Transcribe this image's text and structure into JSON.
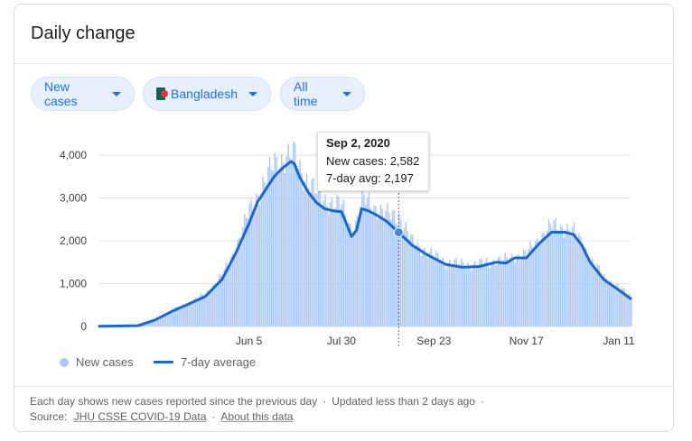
{
  "card": {
    "title": "Daily change"
  },
  "filters": {
    "metric": "New cases",
    "location": "Bangladesh",
    "range": "All time",
    "flag_icon": "bangladesh-flag-icon",
    "colors": {
      "chip_bg": "#e8f0fe",
      "chip_text": "#1a73e8"
    }
  },
  "tooltip": {
    "date": "Sep 2, 2020",
    "cases_text": "New cases: 2,582",
    "avg_text": "7-day avg: 2,197"
  },
  "legend": {
    "cases_label": "New cases",
    "avg_label": "7-day average"
  },
  "footer": {
    "note": "Each day shows new cases reported since the previous day",
    "updated": "Updated less than 2 days ago",
    "source_label": "Source:",
    "source_link": "JHU CSSE COVID-19 Data",
    "about_link": "About this data"
  },
  "chart_data": {
    "type": "bar",
    "ylim": [
      0,
      4000
    ],
    "yticks": [
      0,
      1000,
      2000,
      3000,
      4000
    ],
    "ytick_labels": [
      "0",
      "1,000",
      "2,000",
      "3,000",
      "4,000"
    ],
    "x_start": "2020-03-08",
    "x_end": "2021-01-18",
    "xticks": [
      {
        "date": "2020-06-05",
        "label": "Jun 5"
      },
      {
        "date": "2020-07-30",
        "label": "Jul 30"
      },
      {
        "date": "2020-09-23",
        "label": "Sep 23"
      },
      {
        "date": "2020-11-17",
        "label": "Nov 17"
      },
      {
        "date": "2021-01-11",
        "label": "Jan 11"
      }
    ],
    "highlight": {
      "date": "2020-09-02",
      "value": 2582,
      "avg": 2197
    },
    "colors": {
      "bars": "#a8c7fa",
      "avg_line": "#1967d2",
      "grid": "#e0e0e0"
    },
    "series": [
      {
        "name": "7-day average",
        "points": [
          [
            "2020-03-08",
            5
          ],
          [
            "2020-03-31",
            20
          ],
          [
            "2020-04-10",
            150
          ],
          [
            "2020-04-20",
            350
          ],
          [
            "2020-04-30",
            520
          ],
          [
            "2020-05-10",
            700
          ],
          [
            "2020-05-20",
            1100
          ],
          [
            "2020-05-28",
            1700
          ],
          [
            "2020-06-05",
            2400
          ],
          [
            "2020-06-10",
            2900
          ],
          [
            "2020-06-15",
            3200
          ],
          [
            "2020-06-20",
            3500
          ],
          [
            "2020-06-25",
            3700
          ],
          [
            "2020-06-30",
            3850
          ],
          [
            "2020-07-02",
            3800
          ],
          [
            "2020-07-05",
            3500
          ],
          [
            "2020-07-10",
            3150
          ],
          [
            "2020-07-15",
            2900
          ],
          [
            "2020-07-20",
            2750
          ],
          [
            "2020-07-25",
            2700
          ],
          [
            "2020-07-30",
            2680
          ],
          [
            "2020-08-02",
            2400
          ],
          [
            "2020-08-05",
            2100
          ],
          [
            "2020-08-08",
            2250
          ],
          [
            "2020-08-11",
            2750
          ],
          [
            "2020-08-15",
            2700
          ],
          [
            "2020-08-20",
            2600
          ],
          [
            "2020-08-26",
            2450
          ],
          [
            "2020-09-02",
            2197
          ],
          [
            "2020-09-10",
            1900
          ],
          [
            "2020-09-20",
            1650
          ],
          [
            "2020-09-30",
            1450
          ],
          [
            "2020-10-10",
            1380
          ],
          [
            "2020-10-20",
            1400
          ],
          [
            "2020-10-30",
            1500
          ],
          [
            "2020-11-05",
            1480
          ],
          [
            "2020-11-10",
            1600
          ],
          [
            "2020-11-17",
            1600
          ],
          [
            "2020-11-25",
            1950
          ],
          [
            "2020-12-02",
            2200
          ],
          [
            "2020-12-10",
            2200
          ],
          [
            "2020-12-15",
            2150
          ],
          [
            "2020-12-20",
            1900
          ],
          [
            "2020-12-25",
            1500
          ],
          [
            "2021-01-02",
            1100
          ],
          [
            "2021-01-11",
            850
          ],
          [
            "2021-01-18",
            650
          ]
        ]
      },
      {
        "name": "New cases",
        "points": [
          [
            "2020-03-08",
            5
          ],
          [
            "2020-03-31",
            30
          ],
          [
            "2020-04-10",
            160
          ],
          [
            "2020-04-20",
            380
          ],
          [
            "2020-04-30",
            560
          ],
          [
            "2020-05-10",
            760
          ],
          [
            "2020-05-20",
            1200
          ],
          [
            "2020-05-28",
            1850
          ],
          [
            "2020-06-05",
            2700
          ],
          [
            "2020-06-10",
            3100
          ],
          [
            "2020-06-15",
            3450
          ],
          [
            "2020-06-20",
            3800
          ],
          [
            "2020-06-25",
            3950
          ],
          [
            "2020-06-30",
            4000
          ],
          [
            "2020-07-02",
            3950
          ],
          [
            "2020-07-05",
            3650
          ],
          [
            "2020-07-10",
            3400
          ],
          [
            "2020-07-15",
            3100
          ],
          [
            "2020-07-20",
            2950
          ],
          [
            "2020-07-25",
            2900
          ],
          [
            "2020-07-30",
            2800
          ],
          [
            "2020-08-02",
            2500
          ],
          [
            "2020-08-05",
            2250
          ],
          [
            "2020-08-08",
            2500
          ],
          [
            "2020-08-11",
            2950
          ],
          [
            "2020-08-15",
            2900
          ],
          [
            "2020-08-20",
            2750
          ],
          [
            "2020-08-26",
            2600
          ],
          [
            "2020-09-02",
            2582
          ],
          [
            "2020-09-10",
            1950
          ],
          [
            "2020-09-20",
            1700
          ],
          [
            "2020-09-30",
            1500
          ],
          [
            "2020-10-10",
            1450
          ],
          [
            "2020-10-20",
            1450
          ],
          [
            "2020-10-30",
            1550
          ],
          [
            "2020-11-05",
            1550
          ],
          [
            "2020-11-10",
            1650
          ],
          [
            "2020-11-17",
            1700
          ],
          [
            "2020-11-25",
            2100
          ],
          [
            "2020-12-02",
            2350
          ],
          [
            "2020-12-10",
            2300
          ],
          [
            "2020-12-15",
            2200
          ],
          [
            "2020-12-20",
            1950
          ],
          [
            "2020-12-25",
            1550
          ],
          [
            "2021-01-02",
            1150
          ],
          [
            "2021-01-11",
            900
          ],
          [
            "2021-01-18",
            700
          ]
        ]
      }
    ]
  }
}
